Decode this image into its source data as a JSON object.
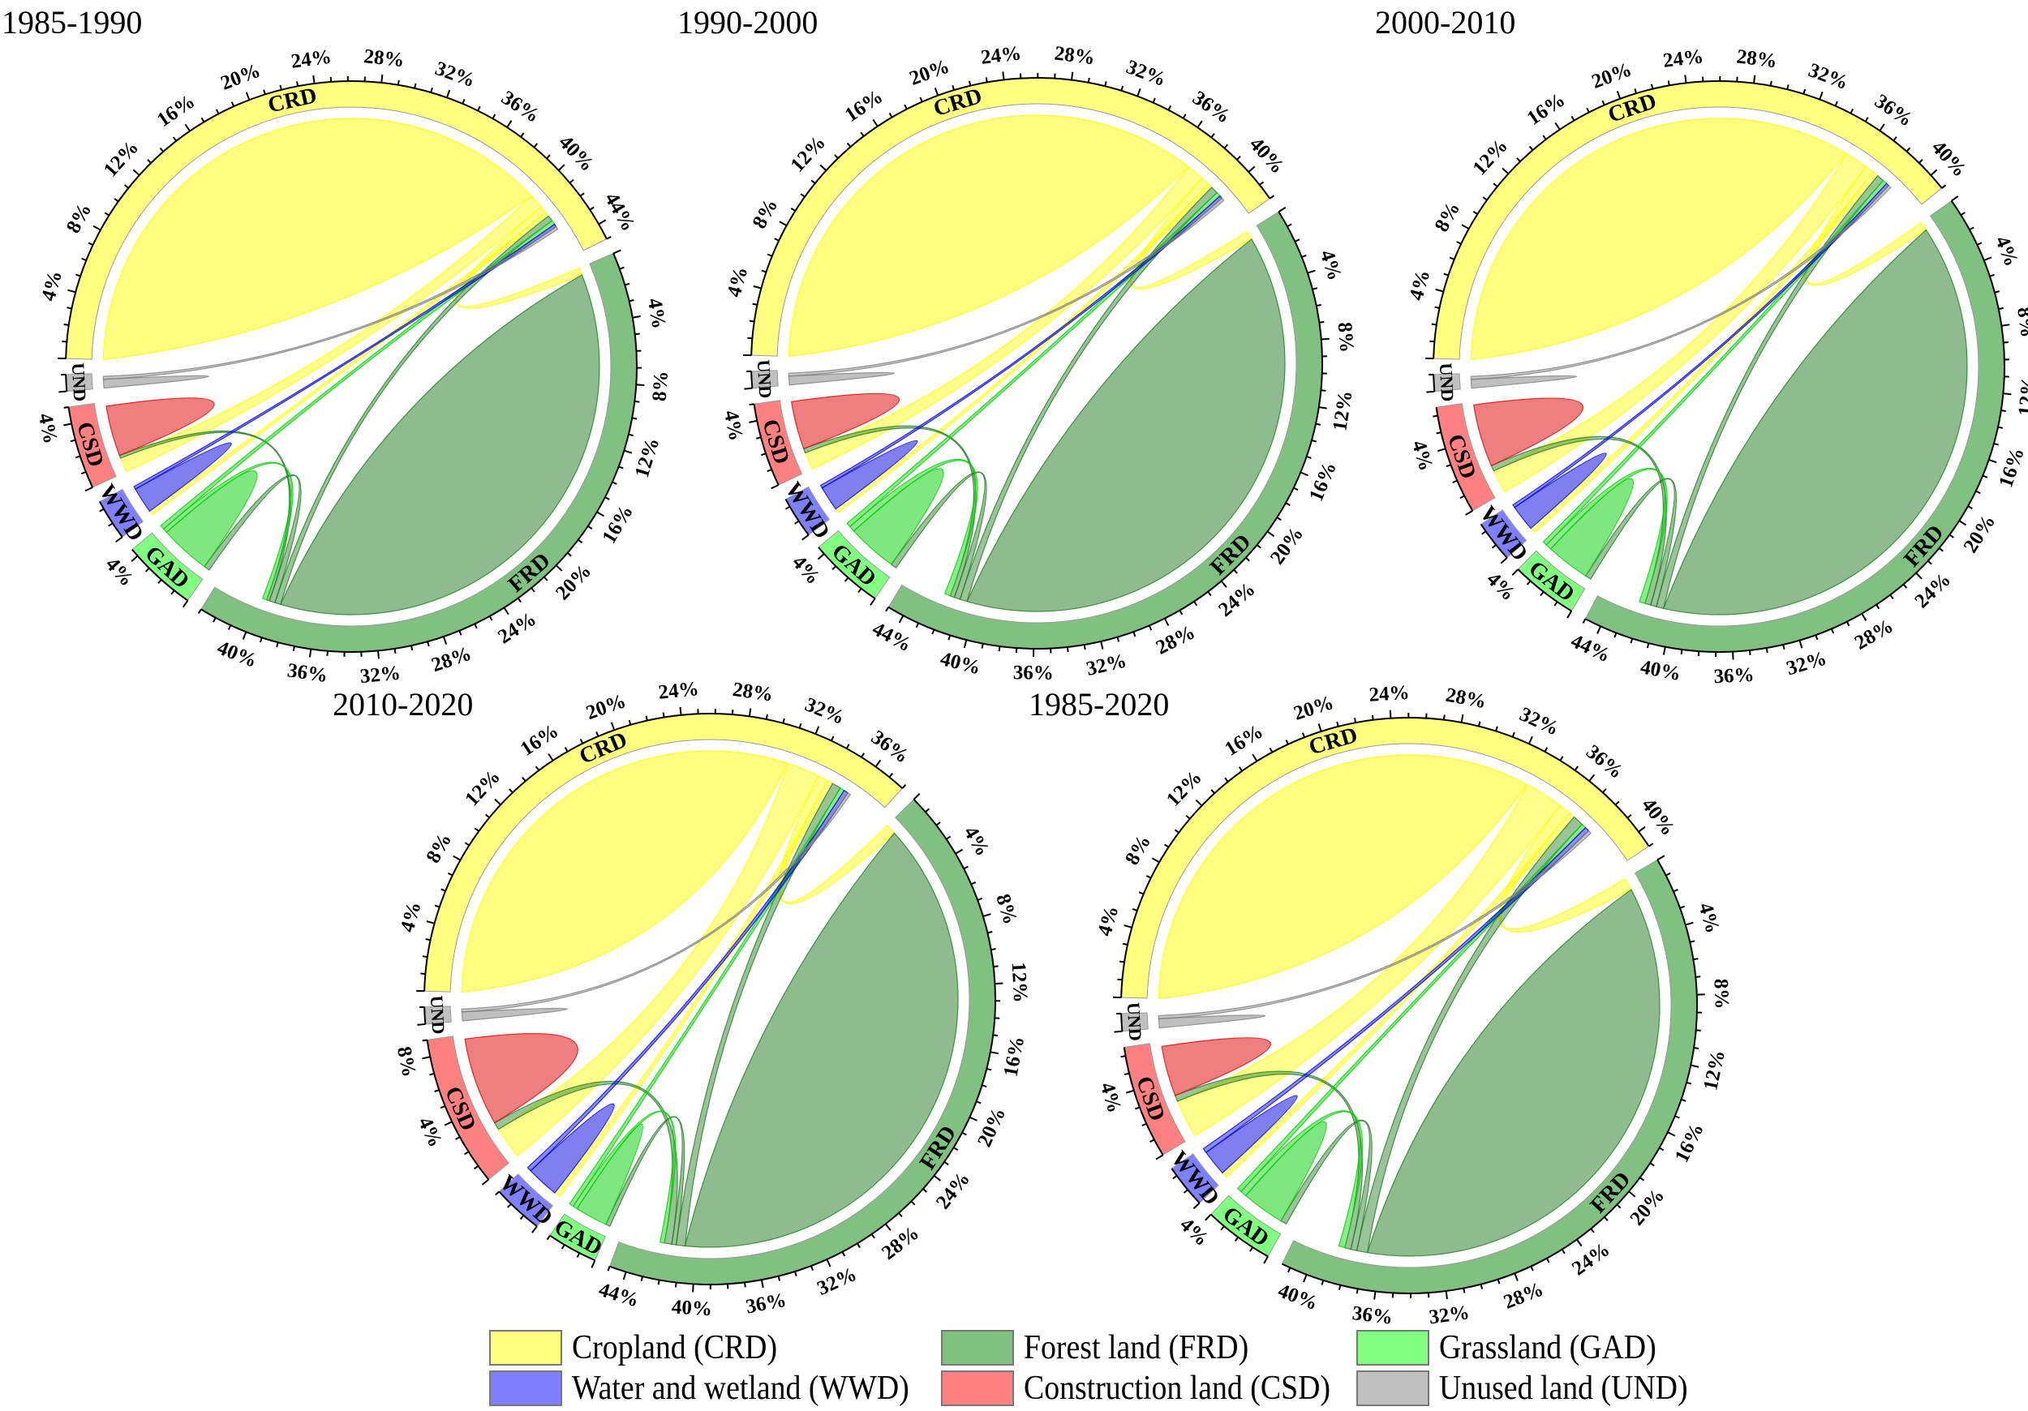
{
  "categories": [
    {
      "code": "CRD",
      "name": "Cropland (CRD)",
      "color": "#ffff80",
      "line": "#ffff00"
    },
    {
      "code": "FRD",
      "name": "Forest land (FRD)",
      "color": "#80c080",
      "line": "#1f7a1f"
    },
    {
      "code": "GAD",
      "name": "Grassland (GAD)",
      "color": "#80ff80",
      "line": "#00d000"
    },
    {
      "code": "WWD",
      "name": "Water and wetland (WWD)",
      "color": "#8080ff",
      "line": "#0000e0"
    },
    {
      "code": "CSD",
      "name": "Construction land (CSD)",
      "color": "#ff8080",
      "line": "#e00000"
    },
    {
      "code": "UND",
      "name": "Unused land (UND)",
      "color": "#c0c0c0",
      "line": "#808080"
    }
  ],
  "chart_data": [
    {
      "type": "chord",
      "title": "1985-1990",
      "tick_step_percent": 4,
      "sectors": {
        "CRD": 45,
        "FRD": 43,
        "GAD": 4.5,
        "WWD": 2.5,
        "CSD": 5,
        "UND": 1
      },
      "flows": [
        [
          "CRD",
          "CRD",
          40
        ],
        [
          "CRD",
          "CSD",
          1
        ],
        [
          "CRD",
          "FRD",
          0.5
        ],
        [
          "CRD",
          "WWD",
          0.3
        ],
        [
          "FRD",
          "FRD",
          38
        ],
        [
          "FRD",
          "CRD",
          0.4
        ],
        [
          "FRD",
          "GAD",
          0.4
        ],
        [
          "FRD",
          "CSD",
          0.2
        ],
        [
          "GAD",
          "GAD",
          3.5
        ],
        [
          "GAD",
          "FRD",
          0.3
        ],
        [
          "GAD",
          "CRD",
          0.3
        ],
        [
          "WWD",
          "WWD",
          1.8
        ],
        [
          "WWD",
          "CRD",
          0.2
        ],
        [
          "CSD",
          "CSD",
          3.5
        ],
        [
          "UND",
          "UND",
          0.6
        ],
        [
          "UND",
          "CRD",
          0.2
        ]
      ]
    },
    {
      "type": "chord",
      "title": "1990-2000",
      "tick_step_percent": 4,
      "sectors": {
        "CRD": 42,
        "FRD": 45,
        "GAD": 4.5,
        "WWD": 2.5,
        "CSD": 5,
        "UND": 1
      },
      "flows": [
        [
          "CRD",
          "CRD",
          37
        ],
        [
          "CRD",
          "CSD",
          1.2
        ],
        [
          "CRD",
          "FRD",
          0.6
        ],
        [
          "CRD",
          "WWD",
          0.3
        ],
        [
          "FRD",
          "FRD",
          40
        ],
        [
          "FRD",
          "CRD",
          0.5
        ],
        [
          "FRD",
          "GAD",
          0.4
        ],
        [
          "FRD",
          "CSD",
          0.3
        ],
        [
          "GAD",
          "GAD",
          3.4
        ],
        [
          "GAD",
          "FRD",
          0.4
        ],
        [
          "GAD",
          "CRD",
          0.3
        ],
        [
          "WWD",
          "WWD",
          1.7
        ],
        [
          "WWD",
          "CRD",
          0.2
        ],
        [
          "CSD",
          "CSD",
          3.3
        ],
        [
          "UND",
          "UND",
          0.6
        ],
        [
          "UND",
          "CRD",
          0.2
        ]
      ]
    },
    {
      "type": "chord",
      "title": "2000-2010",
      "tick_step_percent": 4,
      "sectors": {
        "CRD": 41,
        "FRD": 45,
        "GAD": 4,
        "WWD": 2.5,
        "CSD": 6.5,
        "UND": 1
      },
      "flows": [
        [
          "CRD",
          "CRD",
          35
        ],
        [
          "CRD",
          "CSD",
          1.6
        ],
        [
          "CRD",
          "FRD",
          0.6
        ],
        [
          "CRD",
          "WWD",
          0.4
        ],
        [
          "FRD",
          "FRD",
          40
        ],
        [
          "FRD",
          "CRD",
          0.5
        ],
        [
          "FRD",
          "GAD",
          0.4
        ],
        [
          "FRD",
          "CSD",
          0.4
        ],
        [
          "GAD",
          "GAD",
          3
        ],
        [
          "GAD",
          "FRD",
          0.4
        ],
        [
          "GAD",
          "CRD",
          0.3
        ],
        [
          "WWD",
          "WWD",
          1.8
        ],
        [
          "WWD",
          "CRD",
          0.2
        ],
        [
          "CSD",
          "CSD",
          4.3
        ],
        [
          "UND",
          "UND",
          0.6
        ],
        [
          "UND",
          "CRD",
          0.2
        ]
      ]
    },
    {
      "type": "chord",
      "title": "2010-2020",
      "tick_step_percent": 4,
      "sectors": {
        "CRD": 38,
        "FRD": 45,
        "GAD": 3,
        "WWD": 3,
        "CSD": 9,
        "UND": 1
      },
      "flows": [
        [
          "CRD",
          "CRD",
          31
        ],
        [
          "CRD",
          "CSD",
          2.2
        ],
        [
          "CRD",
          "FRD",
          0.7
        ],
        [
          "CRD",
          "WWD",
          0.4
        ],
        [
          "FRD",
          "FRD",
          40
        ],
        [
          "FRD",
          "CRD",
          0.6
        ],
        [
          "FRD",
          "GAD",
          0.3
        ],
        [
          "FRD",
          "CSD",
          0.5
        ],
        [
          "GAD",
          "GAD",
          2.2
        ],
        [
          "GAD",
          "FRD",
          0.3
        ],
        [
          "GAD",
          "CRD",
          0.3
        ],
        [
          "WWD",
          "WWD",
          2.2
        ],
        [
          "WWD",
          "CRD",
          0.3
        ],
        [
          "CSD",
          "CSD",
          6
        ],
        [
          "UND",
          "UND",
          0.6
        ],
        [
          "UND",
          "CRD",
          0.2
        ]
      ]
    },
    {
      "type": "chord",
      "title": "1985-2020",
      "tick_step_percent": 4,
      "sectors": {
        "CRD": 41,
        "FRD": 41.5,
        "GAD": 4,
        "WWD": 2.5,
        "CSD": 6.5,
        "UND": 1
      },
      "flows": [
        [
          "CRD",
          "CRD",
          33
        ],
        [
          "CRD",
          "CSD",
          2.5
        ],
        [
          "CRD",
          "FRD",
          0.8
        ],
        [
          "CRD",
          "WWD",
          0.4
        ],
        [
          "FRD",
          "FRD",
          36
        ],
        [
          "FRD",
          "CRD",
          0.7
        ],
        [
          "FRD",
          "GAD",
          0.4
        ],
        [
          "FRD",
          "CSD",
          0.4
        ],
        [
          "GAD",
          "GAD",
          2.8
        ],
        [
          "GAD",
          "FRD",
          0.4
        ],
        [
          "GAD",
          "CRD",
          0.3
        ],
        [
          "WWD",
          "WWD",
          1.7
        ],
        [
          "WWD",
          "CRD",
          0.3
        ],
        [
          "CSD",
          "CSD",
          3.3
        ],
        [
          "UND",
          "UND",
          0.6
        ],
        [
          "UND",
          "CRD",
          0.2
        ]
      ]
    }
  ]
}
